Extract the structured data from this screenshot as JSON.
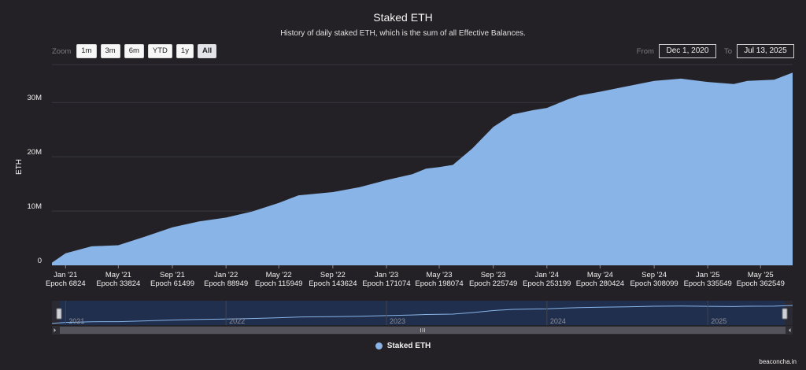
{
  "chart_data": {
    "type": "area",
    "title": "Staked ETH",
    "subtitle": "History of daily staked ETH, which is the sum of all Effective Balances.",
    "ylabel": "ETH",
    "xlabel": "",
    "ylim": [
      0,
      37
    ],
    "yticks": [
      {
        "value": 0,
        "label": "0"
      },
      {
        "value": 10,
        "label": "10M"
      },
      {
        "value": 20,
        "label": "20M"
      },
      {
        "value": 30,
        "label": "30M"
      }
    ],
    "x_range": [
      "2020-12-01",
      "2025-07-13"
    ],
    "xticks": [
      {
        "date": "2021-01-01",
        "month": "Jan '21",
        "epoch": "Epoch 6824"
      },
      {
        "date": "2021-05-01",
        "month": "May '21",
        "epoch": "Epoch 33824"
      },
      {
        "date": "2021-09-01",
        "month": "Sep '21",
        "epoch": "Epoch 61499"
      },
      {
        "date": "2022-01-01",
        "month": "Jan '22",
        "epoch": "Epoch 88949"
      },
      {
        "date": "2022-05-01",
        "month": "May '22",
        "epoch": "Epoch 115949"
      },
      {
        "date": "2022-09-01",
        "month": "Sep '22",
        "epoch": "Epoch 143624"
      },
      {
        "date": "2023-01-01",
        "month": "Jan '23",
        "epoch": "Epoch 171074"
      },
      {
        "date": "2023-05-01",
        "month": "May '23",
        "epoch": "Epoch 198074"
      },
      {
        "date": "2023-09-01",
        "month": "Sep '23",
        "epoch": "Epoch 225749"
      },
      {
        "date": "2024-01-01",
        "month": "Jan '24",
        "epoch": "Epoch 253199"
      },
      {
        "date": "2024-05-01",
        "month": "May '24",
        "epoch": "Epoch 280424"
      },
      {
        "date": "2024-09-01",
        "month": "Sep '24",
        "epoch": "Epoch 308099"
      },
      {
        "date": "2025-01-01",
        "month": "Jan '25",
        "epoch": "Epoch 335549"
      },
      {
        "date": "2025-05-01",
        "month": "May '25",
        "epoch": "Epoch 362549"
      }
    ],
    "series": [
      {
        "name": "Staked ETH",
        "color": "#88b4e8",
        "unit": "M ETH",
        "points": [
          [
            "2020-12-01",
            0.5
          ],
          [
            "2021-01-01",
            2.2
          ],
          [
            "2021-03-01",
            3.5
          ],
          [
            "2021-05-01",
            3.7
          ],
          [
            "2021-07-01",
            5.3
          ],
          [
            "2021-09-01",
            7.0
          ],
          [
            "2021-11-01",
            8.1
          ],
          [
            "2022-01-01",
            8.8
          ],
          [
            "2022-03-01",
            9.9
          ],
          [
            "2022-05-01",
            11.5
          ],
          [
            "2022-06-15",
            12.9
          ],
          [
            "2022-09-01",
            13.5
          ],
          [
            "2022-11-01",
            14.4
          ],
          [
            "2023-01-01",
            15.7
          ],
          [
            "2023-03-01",
            16.8
          ],
          [
            "2023-04-01",
            17.8
          ],
          [
            "2023-05-01",
            18.1
          ],
          [
            "2023-06-01",
            18.5
          ],
          [
            "2023-07-15",
            21.5
          ],
          [
            "2023-09-01",
            25.5
          ],
          [
            "2023-10-15",
            27.8
          ],
          [
            "2023-12-01",
            28.6
          ],
          [
            "2024-01-01",
            29.0
          ],
          [
            "2024-02-15",
            30.5
          ],
          [
            "2024-03-15",
            31.3
          ],
          [
            "2024-05-01",
            32.0
          ],
          [
            "2024-07-01",
            33.0
          ],
          [
            "2024-09-01",
            34.0
          ],
          [
            "2024-11-01",
            34.4
          ],
          [
            "2025-01-01",
            33.8
          ],
          [
            "2025-03-01",
            33.4
          ],
          [
            "2025-04-01",
            34.0
          ],
          [
            "2025-06-01",
            34.2
          ],
          [
            "2025-07-13",
            35.5
          ]
        ]
      }
    ],
    "navigator_labels": [
      "2021",
      "2022",
      "2023",
      "2024",
      "2025"
    ],
    "legend_position": "bottom",
    "grid": true
  },
  "zoom": {
    "label": "Zoom",
    "buttons": [
      "1m",
      "3m",
      "6m",
      "YTD",
      "1y",
      "All"
    ],
    "active": "All"
  },
  "range": {
    "from_label": "From",
    "from_value": "Dec 1, 2020",
    "to_label": "To",
    "to_value": "Jul 13, 2025"
  },
  "legend": {
    "label": "Staked ETH"
  },
  "credit": "beaconcha.in",
  "colors": {
    "background": "#232125",
    "area": "#88b4e8",
    "grid": "#3a3840"
  }
}
